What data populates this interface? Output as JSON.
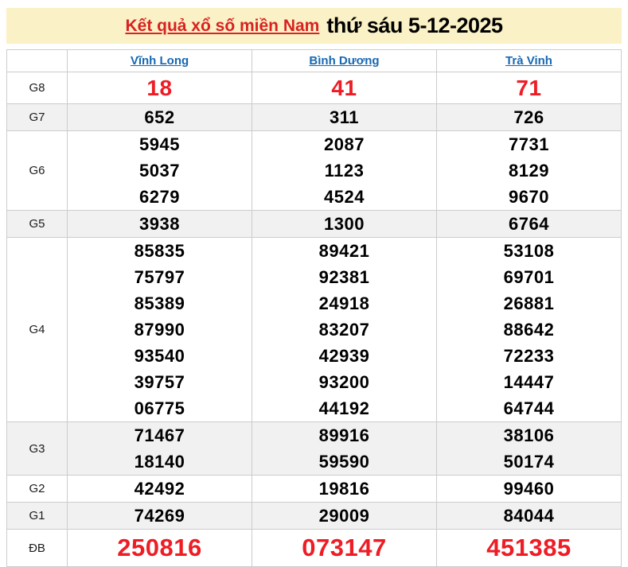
{
  "header": {
    "title_link": "Kết quả xổ số miền Nam",
    "title_date": "thứ sáu 5-12-2025"
  },
  "table": {
    "columns": [
      "Vĩnh Long",
      "Bình Dương",
      "Trà Vinh"
    ],
    "rows": [
      {
        "label": "G8",
        "style": "red-large",
        "values": [
          [
            "18"
          ],
          [
            "41"
          ],
          [
            "71"
          ]
        ]
      },
      {
        "label": "G7",
        "style": "",
        "values": [
          [
            "652"
          ],
          [
            "311"
          ],
          [
            "726"
          ]
        ]
      },
      {
        "label": "G6",
        "style": "",
        "values": [
          [
            "5945",
            "5037",
            "6279"
          ],
          [
            "2087",
            "1123",
            "4524"
          ],
          [
            "7731",
            "8129",
            "9670"
          ]
        ]
      },
      {
        "label": "G5",
        "style": "",
        "values": [
          [
            "3938"
          ],
          [
            "1300"
          ],
          [
            "6764"
          ]
        ]
      },
      {
        "label": "G4",
        "style": "",
        "values": [
          [
            "85835",
            "75797",
            "85389",
            "87990",
            "93540",
            "39757",
            "06775"
          ],
          [
            "89421",
            "92381",
            "24918",
            "83207",
            "42939",
            "93200",
            "44192"
          ],
          [
            "53108",
            "69701",
            "26881",
            "88642",
            "72233",
            "14447",
            "64744"
          ]
        ]
      },
      {
        "label": "G3",
        "style": "",
        "values": [
          [
            "71467",
            "18140"
          ],
          [
            "89916",
            "59590"
          ],
          [
            "38106",
            "50174"
          ]
        ]
      },
      {
        "label": "G2",
        "style": "",
        "values": [
          [
            "42492"
          ],
          [
            "19816"
          ],
          [
            "99460"
          ]
        ]
      },
      {
        "label": "G1",
        "style": "",
        "values": [
          [
            "74269"
          ],
          [
            "29009"
          ],
          [
            "84044"
          ]
        ]
      },
      {
        "label": "ĐB",
        "style": "red-xl",
        "values": [
          [
            "250816"
          ],
          [
            "073147"
          ],
          [
            "451385"
          ]
        ]
      }
    ]
  },
  "colors": {
    "banner_bg": "#fbf1c6",
    "accent_red": "#ee1c25",
    "title_red": "#d92121",
    "link_blue": "#1668b3",
    "row_alt_bg": "#f1f1f1",
    "border": "#cccccc"
  }
}
